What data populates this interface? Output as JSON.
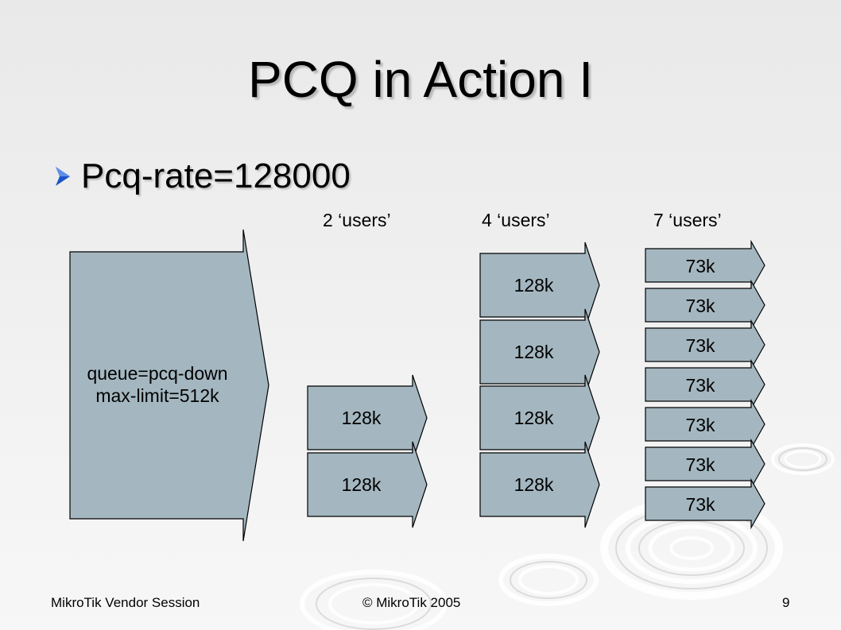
{
  "slide": {
    "title": "PCQ in Action I",
    "bullet": "Pcq-rate=128000"
  },
  "diagram": {
    "column_labels": [
      "2 ‘users’",
      "4 ‘users’",
      "7 ‘users’"
    ],
    "queue_box": {
      "line1": "queue=pcq-down",
      "line2": "max-limit=512k"
    },
    "col2": [
      "128k",
      "128k"
    ],
    "col4": [
      "128k",
      "128k",
      "128k",
      "128k"
    ],
    "col7": [
      "73k",
      "73k",
      "73k",
      "73k",
      "73k",
      "73k",
      "73k"
    ]
  },
  "footer": {
    "left": "MikroTik Vendor Session",
    "center": "© MikroTik 2005",
    "page_number": "9"
  },
  "colors": {
    "shape_fill": "#a4b7c0",
    "shape_stroke": "#000000",
    "bullet_arrow": "#1b54c8"
  }
}
